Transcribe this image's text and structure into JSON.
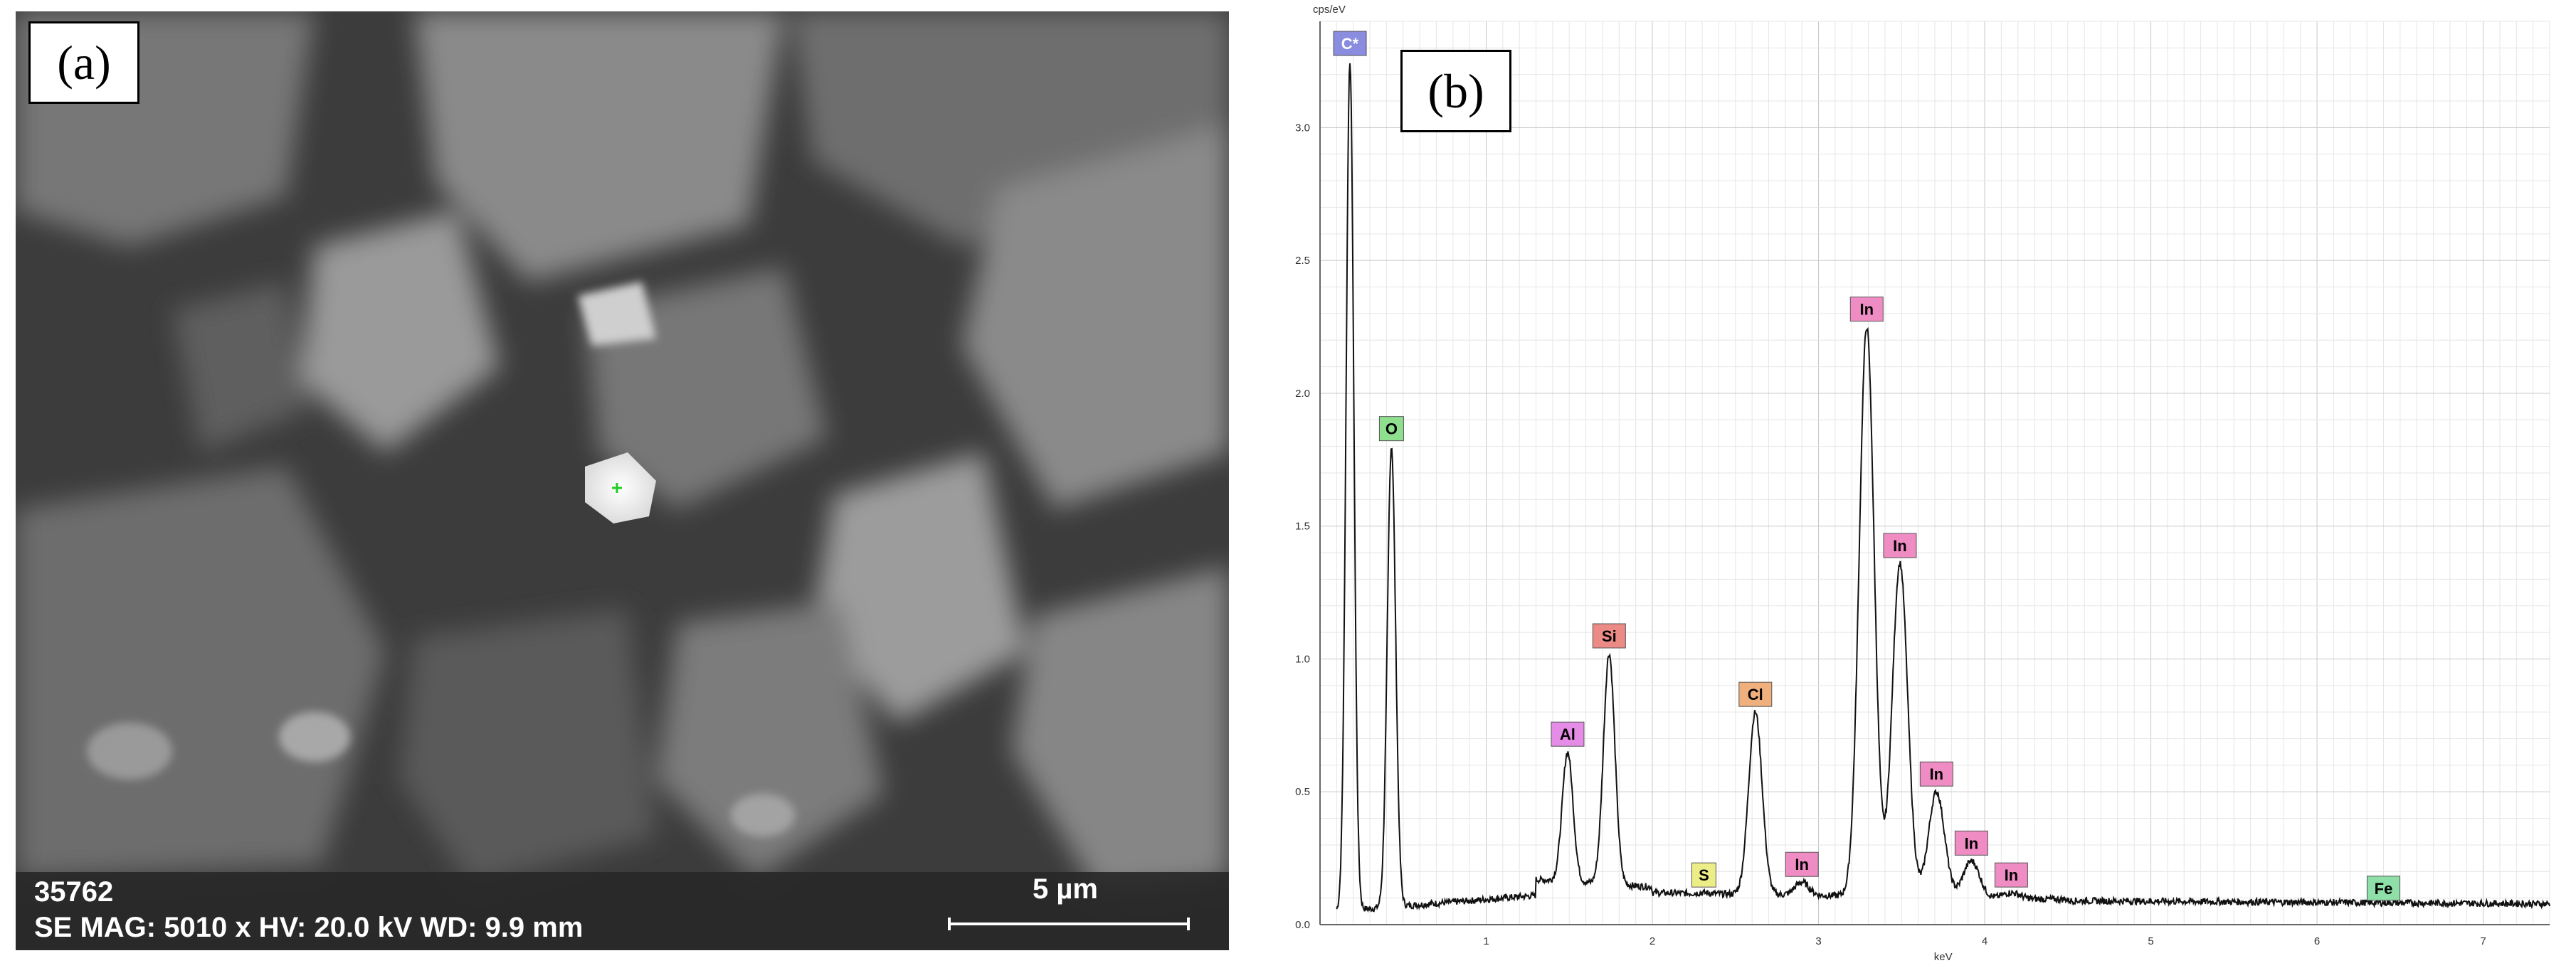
{
  "panels": {
    "a_label": "(a)",
    "b_label": "(b)"
  },
  "sem": {
    "sample_id": "35762",
    "params": "SE  MAG: 5010 x  HV: 20.0 kV  WD: 9.9 mm",
    "scale_label": "5 µm"
  },
  "chart_data": {
    "type": "line",
    "title": "",
    "xlabel": "keV",
    "ylabel": "cps/eV",
    "xlim": [
      0,
      7.4
    ],
    "ylim": [
      0,
      3.4
    ],
    "x_ticks": [
      "1",
      "2",
      "3",
      "4",
      "5",
      "6",
      "7"
    ],
    "y_ticks": [
      "0.0",
      "0.5",
      "1.0",
      "1.5",
      "2.0",
      "2.5",
      "3.0"
    ],
    "grid": true,
    "background_level": 0.05,
    "peaks": [
      {
        "element": "C*",
        "energy": 0.18,
        "height": 3.25,
        "color": "#8a8ce0",
        "text_color": "#ffffff"
      },
      {
        "element": "O",
        "energy": 0.43,
        "height": 1.8,
        "color": "#8ee08e",
        "text_color": "#000000"
      },
      {
        "element": "Al",
        "energy": 1.49,
        "height": 0.65,
        "color": "#e58de6",
        "text_color": "#000000"
      },
      {
        "element": "Si",
        "energy": 1.74,
        "height": 1.02,
        "color": "#ec8a86",
        "text_color": "#000000"
      },
      {
        "element": "S",
        "energy": 2.31,
        "height": 0.12,
        "color": "#eded88",
        "text_color": "#000000"
      },
      {
        "element": "Cl",
        "energy": 2.62,
        "height": 0.8,
        "color": "#f0b07e",
        "text_color": "#000000"
      },
      {
        "element": "In",
        "energy": 2.9,
        "height": 0.16,
        "color": "#ef8cc4",
        "text_color": "#000000"
      },
      {
        "element": "In",
        "energy": 3.29,
        "height": 2.25,
        "color": "#ef8cc4",
        "text_color": "#000000"
      },
      {
        "element": "In",
        "energy": 3.49,
        "height": 1.36,
        "color": "#ef8cc4",
        "text_color": "#000000"
      },
      {
        "element": "In",
        "energy": 3.71,
        "height": 0.5,
        "color": "#ef8cc4",
        "text_color": "#000000"
      },
      {
        "element": "In",
        "energy": 3.92,
        "height": 0.24,
        "color": "#ef8cc4",
        "text_color": "#000000"
      },
      {
        "element": "In",
        "energy": 4.16,
        "height": 0.12,
        "color": "#ef8cc4",
        "text_color": "#000000"
      },
      {
        "element": "Fe",
        "energy": 6.4,
        "height": 0.07,
        "color": "#8ee0a8",
        "text_color": "#000000"
      }
    ]
  }
}
